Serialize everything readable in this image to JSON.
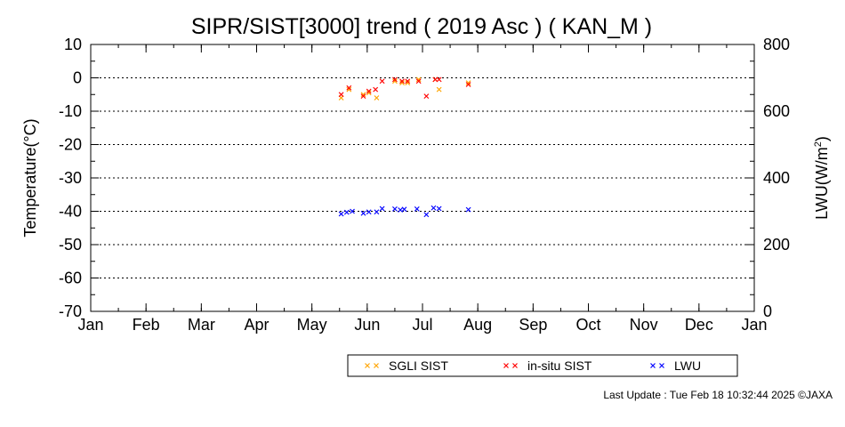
{
  "chart_data": {
    "type": "scatter",
    "title": "SIPR/SIST[3000] trend ( 2019 Asc ) ( KAN_M )",
    "ylabel": "Temperature(°C)",
    "y2label_base": "LWU(W/m",
    "y2label_sup": "2",
    "y2label_end": ")",
    "xlim": [
      0,
      12
    ],
    "ylim": [
      -70,
      10
    ],
    "y2lim": [
      0,
      800
    ],
    "x_ticks": [
      {
        "value": 0,
        "label": "Jan"
      },
      {
        "value": 1,
        "label": "Feb"
      },
      {
        "value": 2,
        "label": "Mar"
      },
      {
        "value": 3,
        "label": "Apr"
      },
      {
        "value": 4,
        "label": "May"
      },
      {
        "value": 5,
        "label": "Jun"
      },
      {
        "value": 6,
        "label": "Jul"
      },
      {
        "value": 7,
        "label": "Aug"
      },
      {
        "value": 8,
        "label": "Sep"
      },
      {
        "value": 9,
        "label": "Oct"
      },
      {
        "value": 10,
        "label": "Nov"
      },
      {
        "value": 11,
        "label": "Dec"
      },
      {
        "value": 12,
        "label": "Jan"
      }
    ],
    "y_ticks": [
      {
        "value": 10,
        "label": "10"
      },
      {
        "value": 0,
        "label": "0"
      },
      {
        "value": -10,
        "label": "-10"
      },
      {
        "value": -20,
        "label": "-20"
      },
      {
        "value": -30,
        "label": "-30"
      },
      {
        "value": -40,
        "label": "-40"
      },
      {
        "value": -50,
        "label": "-50"
      },
      {
        "value": -60,
        "label": "-60"
      },
      {
        "value": -70,
        "label": "-70"
      }
    ],
    "y2_ticks": [
      {
        "value": 800,
        "label": "800"
      },
      {
        "value": 600,
        "label": "600"
      },
      {
        "value": 400,
        "label": "400"
      },
      {
        "value": 200,
        "label": "200"
      },
      {
        "value": 0,
        "label": "0"
      }
    ],
    "grid": "horizontal dotted",
    "legend_position": "bottom-right",
    "series": [
      {
        "name": "SGLI SIST",
        "color": "#ffa500",
        "axis": "left",
        "points": [
          [
            4.53,
            -6.0
          ],
          [
            4.67,
            -3.5
          ],
          [
            4.93,
            -5.0
          ],
          [
            5.03,
            -4.5
          ],
          [
            5.17,
            -6.0
          ],
          [
            5.5,
            -1.0
          ],
          [
            5.63,
            -1.5
          ],
          [
            5.73,
            -1.5
          ],
          [
            5.93,
            -0.5
          ],
          [
            6.23,
            -0.5
          ],
          [
            6.3,
            -3.5
          ],
          [
            6.83,
            -1.5
          ]
        ]
      },
      {
        "name": "in-situ SIST",
        "color": "#ff0000",
        "axis": "left",
        "points": [
          [
            4.53,
            -5.0
          ],
          [
            4.67,
            -3.0
          ],
          [
            4.93,
            -5.5
          ],
          [
            5.03,
            -4.0
          ],
          [
            5.15,
            -3.5
          ],
          [
            5.27,
            -1.0
          ],
          [
            5.5,
            -0.5
          ],
          [
            5.63,
            -1.0
          ],
          [
            5.73,
            -1.0
          ],
          [
            5.93,
            -1.0
          ],
          [
            6.07,
            -5.5
          ],
          [
            6.23,
            -0.5
          ],
          [
            6.3,
            -0.5
          ],
          [
            6.83,
            -2.0
          ]
        ]
      },
      {
        "name": "LWU",
        "color": "#0000ff",
        "axis": "right",
        "points": [
          [
            4.53,
            292
          ],
          [
            4.63,
            297
          ],
          [
            4.73,
            300
          ],
          [
            4.93,
            294
          ],
          [
            5.03,
            298
          ],
          [
            5.17,
            298
          ],
          [
            5.27,
            308
          ],
          [
            5.5,
            307
          ],
          [
            5.6,
            304
          ],
          [
            5.67,
            306
          ],
          [
            5.9,
            307
          ],
          [
            6.07,
            290
          ],
          [
            6.2,
            310
          ],
          [
            6.3,
            308
          ],
          [
            6.83,
            305
          ]
        ]
      }
    ]
  },
  "footer": "Last Update : Tue Feb 18 10:32:44 2025 ©JAXA"
}
